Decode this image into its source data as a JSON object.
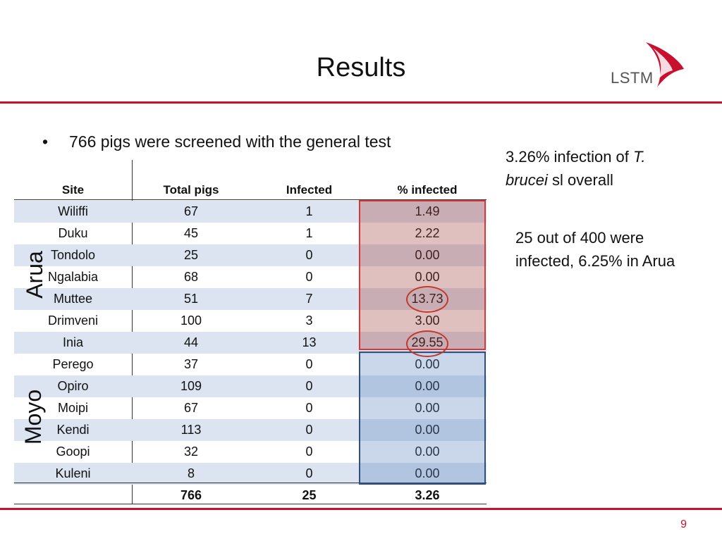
{
  "slide": {
    "title": "Results",
    "logo_text": "LSTM",
    "page_number": "9",
    "bullet": "766 pigs were screened with the general test",
    "note1_prefix": "3.26% infection of ",
    "note1_italic": "T. brucei",
    "note1_suffix": " sl overall",
    "note2": "25 out of 400 were infected, 6.25% in Arua",
    "colors": {
      "accent": "#c8102e",
      "arua_box": "#d93636",
      "moyo_box": "#2f4f80"
    }
  },
  "table": {
    "headers": [
      "Site",
      "Total pigs",
      "Infected",
      "% infected"
    ],
    "regions": {
      "arua": "Arua",
      "moyo": "Moyo"
    },
    "rows": [
      [
        "Wiliffi",
        "67",
        "1",
        "1.49"
      ],
      [
        "Duku",
        "45",
        "1",
        "2.22"
      ],
      [
        "Tondolo",
        "25",
        "0",
        "0.00"
      ],
      [
        "Ngalabia",
        "68",
        "0",
        "0.00"
      ],
      [
        "Muttee",
        "51",
        "7",
        "13.73"
      ],
      [
        "Drimveni",
        "100",
        "3",
        "3.00"
      ],
      [
        "Inia",
        "44",
        "13",
        "29.55"
      ],
      [
        "Perego",
        "37",
        "0",
        "0.00"
      ],
      [
        "Opiro",
        "109",
        "0",
        "0.00"
      ],
      [
        "Moipi",
        "67",
        "0",
        "0.00"
      ],
      [
        "Kendi",
        "113",
        "0",
        "0.00"
      ],
      [
        "Goopi",
        "32",
        "0",
        "0.00"
      ],
      [
        "Kuleni",
        "8",
        "0",
        "0.00"
      ]
    ],
    "total": [
      "",
      "766",
      "25",
      "3.26"
    ]
  }
}
